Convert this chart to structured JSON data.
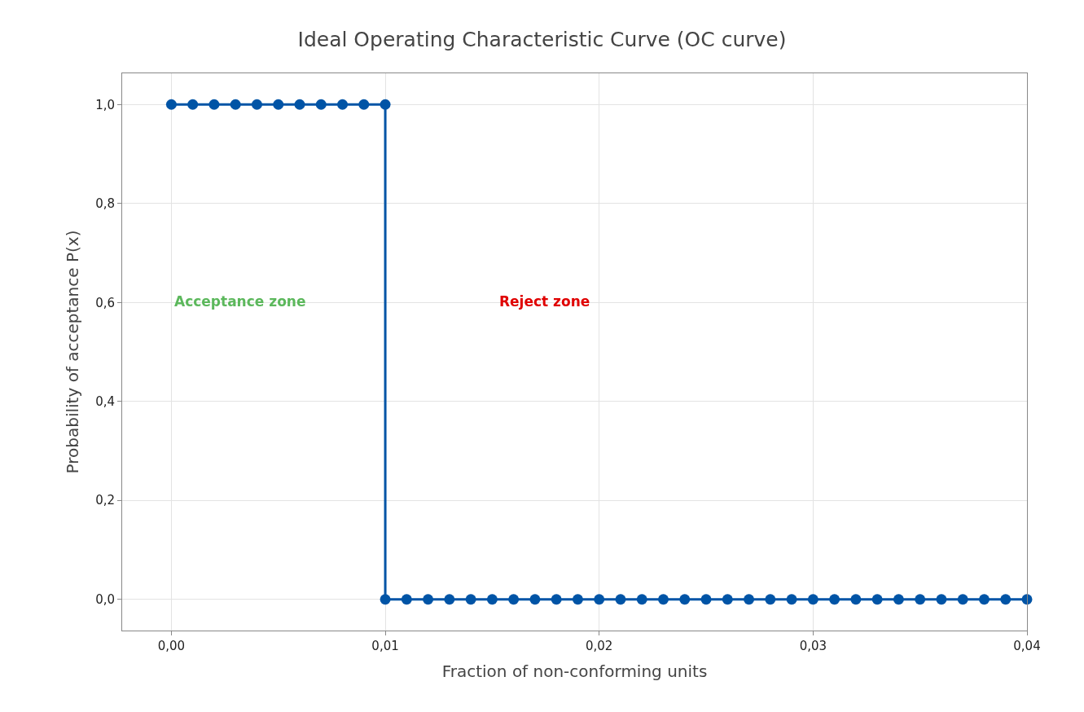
{
  "chart_data": {
    "type": "line",
    "title": "Ideal Operating Characteristic Curve (OC curve)",
    "xlabel": "Fraction of non-conforming units",
    "ylabel": "Probability of acceptance P(x)",
    "x": [
      0,
      0.001,
      0.002,
      0.003,
      0.004,
      0.005,
      0.006,
      0.007,
      0.008,
      0.009,
      0.01,
      0.01,
      0.011,
      0.012,
      0.013,
      0.014,
      0.015,
      0.016,
      0.017,
      0.018,
      0.019,
      0.02,
      0.021,
      0.022,
      0.023,
      0.024,
      0.025,
      0.026,
      0.027,
      0.028,
      0.029,
      0.03,
      0.031,
      0.032,
      0.033,
      0.034,
      0.035,
      0.036,
      0.037,
      0.038,
      0.039,
      0.04
    ],
    "series": [
      {
        "color": "#0054a6",
        "values": [
          1,
          1,
          1,
          1,
          1,
          1,
          1,
          1,
          1,
          1,
          1,
          0,
          0,
          0,
          0,
          0,
          0,
          0,
          0,
          0,
          0,
          0,
          0,
          0,
          0,
          0,
          0,
          0,
          0,
          0,
          0,
          0,
          0,
          0,
          0,
          0,
          0,
          0,
          0,
          0,
          0,
          0
        ]
      }
    ],
    "xlim": [
      -0.0023,
      0.04
    ],
    "xticks": [
      {
        "value": 0,
        "label": "0,00"
      },
      {
        "value": 0.01,
        "label": "0,01"
      },
      {
        "value": 0.02,
        "label": "0,02"
      },
      {
        "value": 0.03,
        "label": "0,03"
      },
      {
        "value": 0.04,
        "label": "0,04"
      }
    ],
    "ylim": [
      -0.063,
      1.063
    ],
    "yticks": [
      {
        "value": 0,
        "label": "0,0"
      },
      {
        "value": 0.2,
        "label": "0,2"
      },
      {
        "value": 0.4,
        "label": "0,4"
      },
      {
        "value": 0.6,
        "label": "0,6"
      },
      {
        "value": 0.8,
        "label": "0,8"
      },
      {
        "value": 1,
        "label": "1,0"
      }
    ],
    "annotations": [
      "Acceptance zone",
      "Reject zone"
    ],
    "grid": true,
    "marker": "circle",
    "line_style": "solid"
  }
}
